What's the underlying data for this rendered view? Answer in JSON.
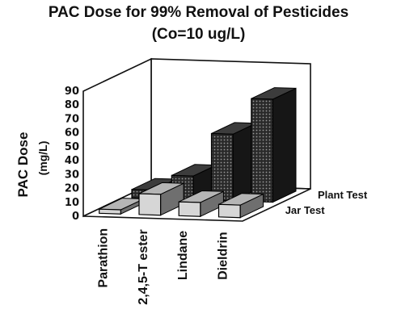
{
  "chart_data": {
    "type": "bar",
    "title": "PAC  Dose for 99% Removal of Pesticides",
    "subtitle": "(Co=10 ug/L)",
    "ylabel": "PAC Dose",
    "ylabel_unit": "(mg/L)",
    "xlabel": "",
    "categories": [
      "Parathion",
      "2,4,5-T ester",
      "Lindane",
      "Dieldrin"
    ],
    "series": [
      {
        "name": "Jar Test",
        "values": [
          3,
          15,
          10,
          9
        ]
      },
      {
        "name": "Plant Test",
        "values": [
          6,
          17,
          48,
          74
        ]
      }
    ],
    "yticks": [
      "0",
      "10",
      "20",
      "30",
      "40",
      "50",
      "60",
      "70",
      "80",
      "90"
    ],
    "ylim": [
      0,
      90
    ],
    "three_d": true,
    "colors": {
      "jar_front": "#d6d6d6",
      "jar_top": "#b5b5b5",
      "jar_side": "#6f6f6f",
      "plant_front": "#2a2a2a",
      "plant_dot": "#9a9a9a",
      "plant_top": "#3c3c3c",
      "plant_side": "#161616",
      "axes": "#111111"
    }
  }
}
